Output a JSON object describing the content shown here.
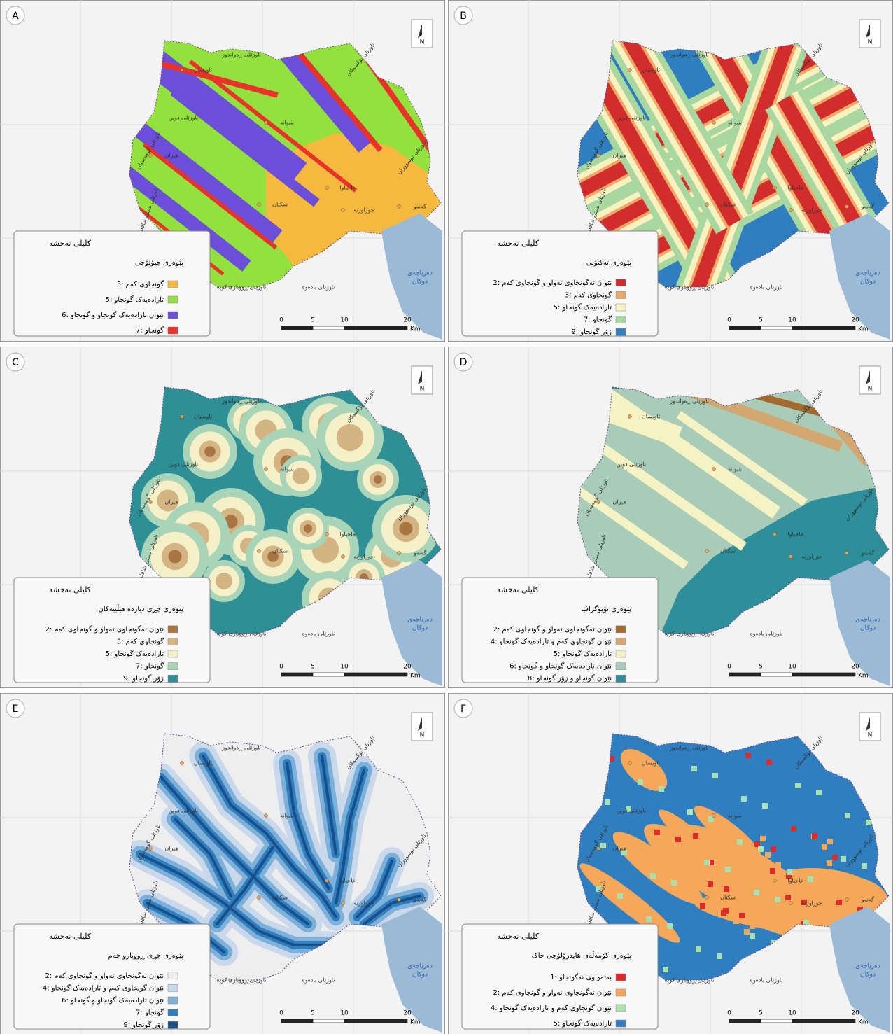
{
  "legend_title": "کلیلی نەخشە",
  "scale_labels": [
    0,
    5,
    10,
    20
  ],
  "scale_unit": "Km",
  "north": "N",
  "lake_label": [
    "دەریاچەی",
    "دوکان"
  ],
  "place_labels": [
    "ناوزێلی ڕەواندوز",
    "ناوزێلی بۆکسیکان",
    "ناوزێلی دوین",
    "ناوزێلی گومەسپان",
    "ناوزێلی بستی شاقلە",
    "ناوزێلی ڕووباری کۆیە",
    "ناوزێلی بادەوە",
    "ناوزێلی توسووران",
    "هیران",
    "بنیوانە",
    "سکتان",
    "خاجیاوا",
    "جوراورنە",
    "گەنەو",
    "ئاویسان"
  ],
  "panels": [
    {
      "letter": "A",
      "layer_title": "پێوەری جیۆلۆجی",
      "items": [
        {
          "label": "گونجاوی کەم :3",
          "color": "#f5b93f"
        },
        {
          "label": "تارادەیەک گونجاو :5",
          "color": "#92e13c"
        },
        {
          "label": "نێوان تارادەیەک گونجاو و گونجاو :6",
          "color": "#6b4fd8"
        },
        {
          "label": "گونجاو :7",
          "color": "#e8322a"
        }
      ]
    },
    {
      "letter": "B",
      "layer_title": "پێوەری تەکتۆنی",
      "items": [
        {
          "label": "نێوان نەگونجاوی تەواو و گونجاوی کەم :2",
          "color": "#d22c2c"
        },
        {
          "label": "گونجاوی کەم :3",
          "color": "#f0a868"
        },
        {
          "label": "تارادەیەک گونجاو :5",
          "color": "#f8f2c0"
        },
        {
          "label": "گونجاو :7",
          "color": "#a8d8a0"
        },
        {
          "label": "زۆر گونجاو :9",
          "color": "#2f7fc0"
        }
      ]
    },
    {
      "letter": "C",
      "layer_title": "پێوەری چڕی دیاردە هێڵییەکان",
      "items": [
        {
          "label": "نێوان نەگونجاوی تەواو و گونجاوی کەم :2",
          "color": "#a87543"
        },
        {
          "label": "گونجاوی کەم :3",
          "color": "#d4b483"
        },
        {
          "label": "تارادەیەک گونجاو :5",
          "color": "#f5f0c8"
        },
        {
          "label": "گونجاو :7",
          "color": "#a8d4b8"
        },
        {
          "label": "زۆر گونجاو :9",
          "color": "#2e8f96"
        }
      ]
    },
    {
      "letter": "D",
      "layer_title": "پێوەری تۆپۆگرافیا",
      "items": [
        {
          "label": "نێوان نەگونجاوی تەواو و گونجاوی کەم :2",
          "color": "#a36a30"
        },
        {
          "label": "نێوان گونجاوی کەم و تارادەیەک گونجاو :4",
          "color": "#d3a870"
        },
        {
          "label": "تارادەیەک گونجاو :5",
          "color": "#f5f2c3"
        },
        {
          "label": "نێوان تارادەیەک گونجاو و گونجاو :6",
          "color": "#a8ccb8"
        },
        {
          "label": "نێوان گونجاو و زۆر گونجاو :8",
          "color": "#2e8f9a"
        }
      ]
    },
    {
      "letter": "E",
      "layer_title": "پێوەری چڕی ڕووبارو چەم",
      "items": [
        {
          "label": "نێوان نەگونجاوی تەواو و گونجاوی کەم :2",
          "color": "#eeeeee"
        },
        {
          "label": "نێوان گونجاوی کەم و تارادەیەک گونجاو :4",
          "color": "#c9d8ea"
        },
        {
          "label": "نێوان تارادەیەک گونجاو و گونجاو :6",
          "color": "#7fb0d8"
        },
        {
          "label": "گونجاو :7",
          "color": "#2f7fbf"
        },
        {
          "label": "زۆر گونجاو :9",
          "color": "#1a4f8a"
        }
      ]
    },
    {
      "letter": "F",
      "layer_title": "پێوەری کۆمەڵەی هایدرۆلۆجی خاک",
      "items": [
        {
          "label": "بەتەواوی نەگونجاو :1",
          "color": "#e02a2a"
        },
        {
          "label": "نێوان نەگونجاوی تەواو و گونجاوی کەم :2",
          "color": "#f5a85a"
        },
        {
          "label": "نێوان گونجاوی کەم و تارادەیەک گونجاو :4",
          "color": "#a8e0b0"
        },
        {
          "label": "تارادەیەک گونجاو :5",
          "color": "#2f7fc0"
        }
      ]
    }
  ]
}
